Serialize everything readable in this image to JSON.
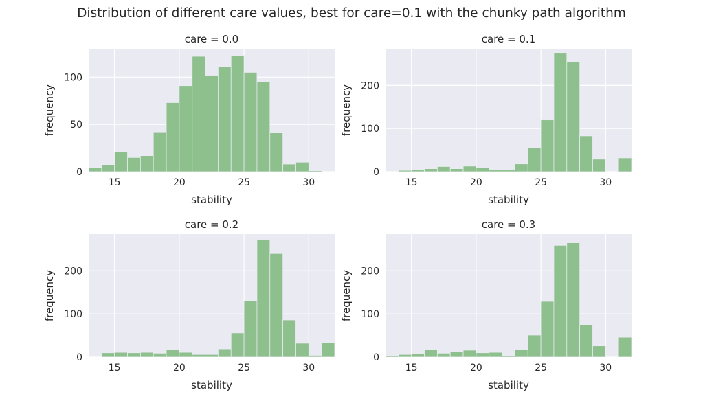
{
  "figure": {
    "title": "Distribution of different care values, best for care=0.1 with the chunky path algorithm"
  },
  "colors": {
    "bar": "#8dc08d",
    "bar_edge": "#eaeaf2",
    "plot_bg": "#eaeaf2",
    "grid": "#ffffff",
    "text": "#262626"
  },
  "chart_data": [
    {
      "type": "bar",
      "title": "care = 0.0",
      "xlabel": "stability",
      "ylabel": "frequency",
      "xlim": [
        13,
        32
      ],
      "ylim": [
        0,
        130
      ],
      "xticks": [
        15,
        20,
        25,
        30
      ],
      "yticks": [
        0,
        50,
        100
      ],
      "bin_edges": [
        13,
        14,
        15,
        16,
        17,
        18,
        19,
        20,
        21,
        22,
        23,
        24,
        25,
        26,
        27,
        28,
        29,
        30
      ],
      "values": [
        4,
        7,
        21,
        15,
        17,
        42,
        73,
        91,
        122,
        102,
        111,
        123,
        105,
        95,
        41,
        8,
        10,
        1
      ]
    },
    {
      "type": "bar",
      "title": "care = 0.1",
      "xlabel": "stability",
      "ylabel": "frequency",
      "xlim": [
        13,
        32
      ],
      "ylim": [
        0,
        285
      ],
      "xticks": [
        15,
        20,
        25,
        30
      ],
      "yticks": [
        0,
        100,
        200
      ],
      "bin_edges": [
        14,
        15,
        16,
        17,
        18,
        19,
        20,
        21,
        22,
        23,
        24,
        25,
        26,
        27,
        28,
        29,
        30,
        31,
        32
      ],
      "values": [
        3,
        4,
        7,
        12,
        7,
        13,
        10,
        5,
        5,
        18,
        55,
        120,
        276,
        255,
        83,
        29,
        0,
        32,
        3
      ]
    },
    {
      "type": "bar",
      "title": "care = 0.2",
      "xlabel": "stability",
      "ylabel": "frequency",
      "xlim": [
        13,
        32
      ],
      "ylim": [
        0,
        285
      ],
      "xticks": [
        15,
        20,
        25,
        30
      ],
      "yticks": [
        0,
        100,
        200
      ],
      "bin_edges": [
        14,
        15,
        16,
        17,
        18,
        19,
        20,
        21,
        22,
        23,
        24,
        25,
        26,
        27,
        28,
        29,
        30,
        31,
        32
      ],
      "values": [
        10,
        11,
        10,
        11,
        9,
        18,
        11,
        6,
        6,
        19,
        56,
        130,
        272,
        240,
        86,
        32,
        4,
        34,
        4
      ]
    },
    {
      "type": "bar",
      "title": "care = 0.3",
      "xlabel": "stability",
      "ylabel": "frequency",
      "xlim": [
        13,
        32
      ],
      "ylim": [
        0,
        285
      ],
      "xticks": [
        15,
        20,
        25,
        30
      ],
      "yticks": [
        0,
        100,
        200
      ],
      "bin_edges": [
        13,
        14,
        15,
        16,
        17,
        18,
        19,
        20,
        21,
        22,
        23,
        24,
        25,
        26,
        27,
        28,
        29,
        30,
        31
      ],
      "values": [
        3,
        6,
        8,
        17,
        9,
        12,
        16,
        10,
        11,
        3,
        17,
        51,
        129,
        259,
        265,
        74,
        26,
        0,
        46
      ]
    }
  ]
}
